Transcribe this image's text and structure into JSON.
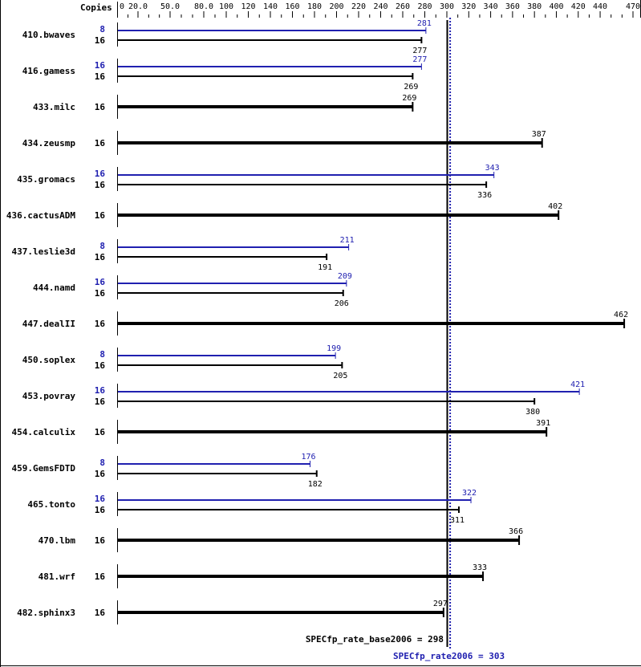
{
  "chart_data": {
    "type": "bar",
    "orientation": "horizontal",
    "axis_header": "Copies",
    "tick_labels": [
      "0",
      "20.0",
      "50.0",
      "80.0",
      "100",
      "120",
      "140",
      "160",
      "180",
      "200",
      "220",
      "240",
      "260",
      "280",
      "300",
      "320",
      "340",
      "360",
      "380",
      "400",
      "420",
      "440",
      "470"
    ],
    "xlim": [
      0,
      470
    ],
    "colors": {
      "base": "#000000",
      "peak": "#2020b0"
    },
    "benchmarks": [
      {
        "name": "410.bwaves",
        "peak": {
          "copies": "8",
          "value": 281
        },
        "base": {
          "copies": "16",
          "value": 277
        }
      },
      {
        "name": "416.gamess",
        "peak": {
          "copies": "16",
          "value": 277
        },
        "base": {
          "copies": "16",
          "value": 269
        }
      },
      {
        "name": "433.milc",
        "base": {
          "copies": "16",
          "value": 269
        }
      },
      {
        "name": "434.zeusmp",
        "base": {
          "copies": "16",
          "value": 387
        }
      },
      {
        "name": "435.gromacs",
        "peak": {
          "copies": "16",
          "value": 343
        },
        "base": {
          "copies": "16",
          "value": 336
        }
      },
      {
        "name": "436.cactusADM",
        "base": {
          "copies": "16",
          "value": 402
        }
      },
      {
        "name": "437.leslie3d",
        "peak": {
          "copies": "8",
          "value": 211
        },
        "base": {
          "copies": "16",
          "value": 191
        }
      },
      {
        "name": "444.namd",
        "peak": {
          "copies": "16",
          "value": 209
        },
        "base": {
          "copies": "16",
          "value": 206
        }
      },
      {
        "name": "447.dealII",
        "base": {
          "copies": "16",
          "value": 462
        }
      },
      {
        "name": "450.soplex",
        "peak": {
          "copies": "8",
          "value": 199
        },
        "base": {
          "copies": "16",
          "value": 205
        }
      },
      {
        "name": "453.povray",
        "peak": {
          "copies": "16",
          "value": 421
        },
        "base": {
          "copies": "16",
          "value": 380
        }
      },
      {
        "name": "454.calculix",
        "base": {
          "copies": "16",
          "value": 391
        }
      },
      {
        "name": "459.GemsFDTD",
        "peak": {
          "copies": "8",
          "value": 176
        },
        "base": {
          "copies": "16",
          "value": 182
        }
      },
      {
        "name": "465.tonto",
        "peak": {
          "copies": "16",
          "value": 322
        },
        "base": {
          "copies": "16",
          "value": 311
        }
      },
      {
        "name": "470.lbm",
        "base": {
          "copies": "16",
          "value": 366
        }
      },
      {
        "name": "481.wrf",
        "base": {
          "copies": "16",
          "value": 333
        }
      },
      {
        "name": "482.sphinx3",
        "base": {
          "copies": "16",
          "value": 297
        }
      }
    ],
    "base_summary": {
      "label": "SPECfp_rate_base2006 = 298",
      "value": 298
    },
    "peak_summary": {
      "label": "SPECfp_rate2006 = 303",
      "value": 303
    }
  }
}
